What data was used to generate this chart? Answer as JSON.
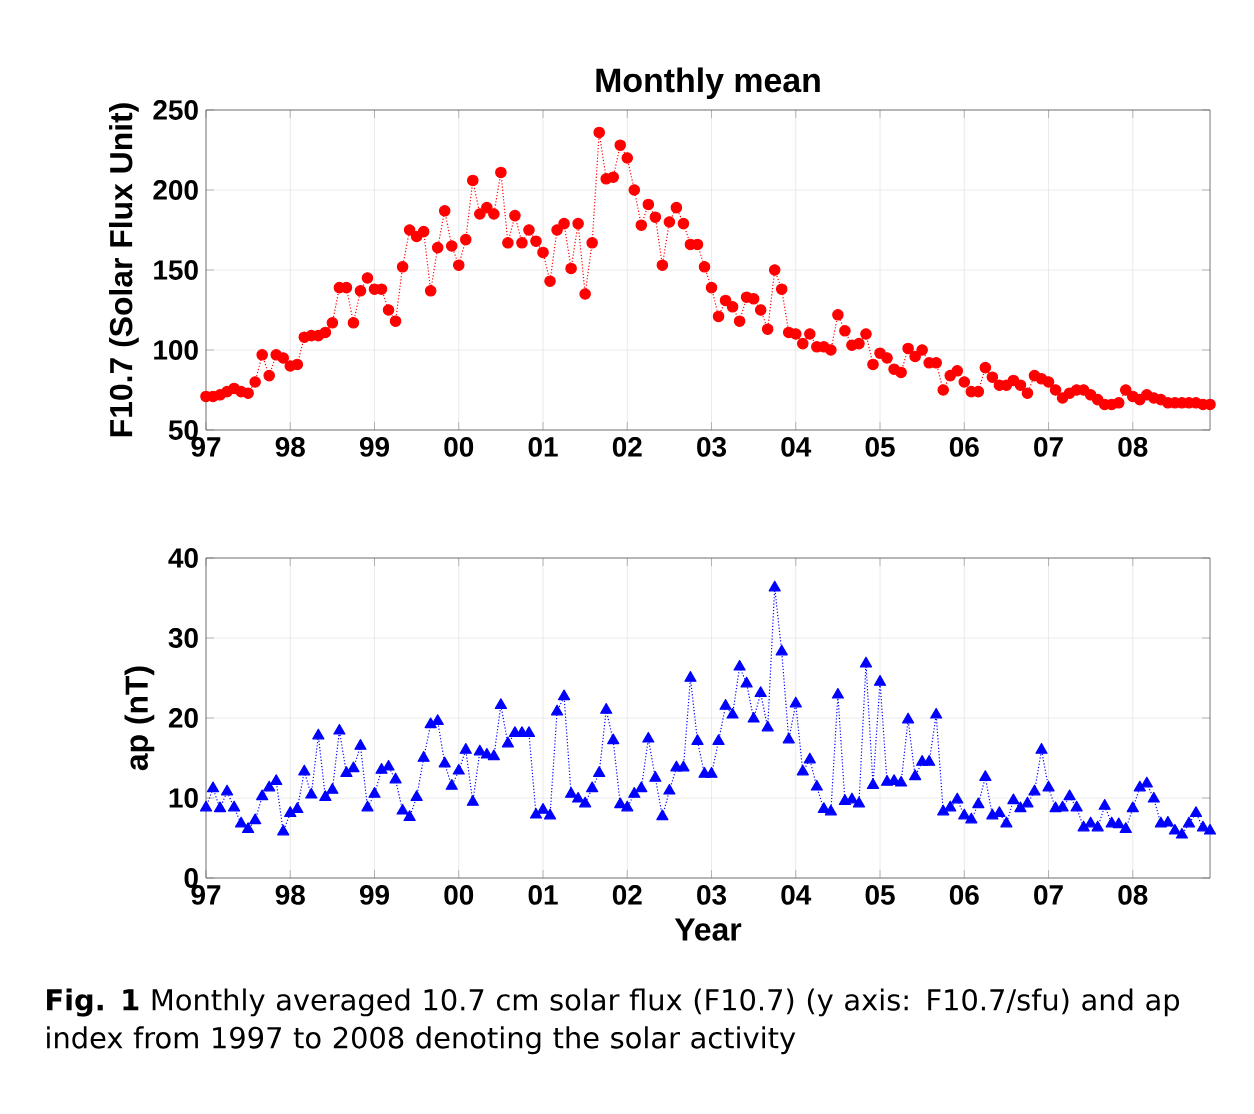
{
  "chart_data": [
    {
      "type": "line",
      "title": "Monthly mean",
      "ylabel": "F10.7 (Solar Flux Unit)",
      "x": [
        "1997-01",
        "1997-02",
        "1997-03",
        "1997-04",
        "1997-05",
        "1997-06",
        "1997-07",
        "1997-08",
        "1997-09",
        "1997-10",
        "1997-11",
        "1997-12",
        "1998-01",
        "1998-02",
        "1998-03",
        "1998-04",
        "1998-05",
        "1998-06",
        "1998-07",
        "1998-08",
        "1998-09",
        "1998-10",
        "1998-11",
        "1998-12",
        "1999-01",
        "1999-02",
        "1999-03",
        "1999-04",
        "1999-05",
        "1999-06",
        "1999-07",
        "1999-08",
        "1999-09",
        "1999-10",
        "1999-11",
        "1999-12",
        "2000-01",
        "2000-02",
        "2000-03",
        "2000-04",
        "2000-05",
        "2000-06",
        "2000-07",
        "2000-08",
        "2000-09",
        "2000-10",
        "2000-11",
        "2000-12",
        "2001-01",
        "2001-02",
        "2001-03",
        "2001-04",
        "2001-05",
        "2001-06",
        "2001-07",
        "2001-08",
        "2001-09",
        "2001-10",
        "2001-11",
        "2001-12",
        "2002-01",
        "2002-02",
        "2002-03",
        "2002-04",
        "2002-05",
        "2002-06",
        "2002-07",
        "2002-08",
        "2002-09",
        "2002-10",
        "2002-11",
        "2002-12",
        "2003-01",
        "2003-02",
        "2003-03",
        "2003-04",
        "2003-05",
        "2003-06",
        "2003-07",
        "2003-08",
        "2003-09",
        "2003-10",
        "2003-11",
        "2003-12",
        "2004-01",
        "2004-02",
        "2004-03",
        "2004-04",
        "2004-05",
        "2004-06",
        "2004-07",
        "2004-08",
        "2004-09",
        "2004-10",
        "2004-11",
        "2004-12",
        "2005-01",
        "2005-02",
        "2005-03",
        "2005-04",
        "2005-05",
        "2005-06",
        "2005-07",
        "2005-08",
        "2005-09",
        "2005-10",
        "2005-11",
        "2005-12",
        "2006-01",
        "2006-02",
        "2006-03",
        "2006-04",
        "2006-05",
        "2006-06",
        "2006-07",
        "2006-08",
        "2006-09",
        "2006-10",
        "2006-11",
        "2006-12",
        "2007-01",
        "2007-02",
        "2007-03",
        "2007-04",
        "2007-05",
        "2007-06",
        "2007-07",
        "2007-08",
        "2007-09",
        "2007-10",
        "2007-11",
        "2007-12",
        "2008-01",
        "2008-02",
        "2008-03",
        "2008-04",
        "2008-05",
        "2008-06",
        "2008-07",
        "2008-08",
        "2008-09",
        "2008-10",
        "2008-11",
        "2008-12"
      ],
      "series": [
        {
          "color": "#ff0000",
          "values": [
            71,
            71,
            72,
            74,
            76,
            74,
            73,
            80,
            97,
            84,
            97,
            95,
            90,
            91,
            108,
            109,
            109,
            111,
            117,
            139,
            139,
            117,
            137,
            145,
            138,
            138,
            125,
            118,
            152,
            175,
            171,
            174,
            137,
            164,
            187,
            165,
            153,
            169,
            206,
            185,
            189,
            185,
            211,
            167,
            184,
            167,
            175,
            168,
            161,
            143,
            175,
            179,
            151,
            179,
            135,
            167,
            236,
            207,
            208,
            228,
            220,
            200,
            178,
            191,
            183,
            153,
            180,
            189,
            179,
            166,
            166,
            152,
            139,
            121,
            131,
            127,
            118,
            133,
            132,
            125,
            113,
            150,
            138,
            111,
            110,
            104,
            110,
            102,
            102,
            100,
            122,
            112,
            103,
            104,
            110,
            91,
            98,
            95,
            88,
            86,
            101,
            96,
            100,
            92,
            92,
            75,
            84,
            87,
            80,
            74,
            74,
            89,
            83,
            78,
            78,
            81,
            78,
            73,
            84,
            82,
            80,
            75,
            70,
            73,
            75,
            75,
            72,
            69,
            66,
            66,
            67,
            75,
            71,
            69,
            72,
            70,
            69,
            67,
            67,
            67,
            67,
            67,
            66,
            66
          ]
        }
      ],
      "marker": "circle",
      "line_style": "dotted",
      "grid": true,
      "xlim": [
        "1997-01",
        "2008-12"
      ],
      "ylim": [
        50,
        250
      ],
      "yticks": [
        50,
        100,
        150,
        200,
        250
      ],
      "xticks": [
        {
          "value": "1997",
          "label": "97"
        },
        {
          "value": "1998",
          "label": "98"
        },
        {
          "value": "1999",
          "label": "99"
        },
        {
          "value": "2000",
          "label": "00"
        },
        {
          "value": "2001",
          "label": "01"
        },
        {
          "value": "2002",
          "label": "02"
        },
        {
          "value": "2003",
          "label": "03"
        },
        {
          "value": "2004",
          "label": "04"
        },
        {
          "value": "2005",
          "label": "05"
        },
        {
          "value": "2006",
          "label": "06"
        },
        {
          "value": "2007",
          "label": "07"
        },
        {
          "value": "2008",
          "label": "08"
        }
      ]
    },
    {
      "type": "line",
      "ylabel": "ap (nT)",
      "xlabel": "Year",
      "x": [
        "1997-01",
        "1997-02",
        "1997-03",
        "1997-04",
        "1997-05",
        "1997-06",
        "1997-07",
        "1997-08",
        "1997-09",
        "1997-10",
        "1997-11",
        "1997-12",
        "1998-01",
        "1998-02",
        "1998-03",
        "1998-04",
        "1998-05",
        "1998-06",
        "1998-07",
        "1998-08",
        "1998-09",
        "1998-10",
        "1998-11",
        "1998-12",
        "1999-01",
        "1999-02",
        "1999-03",
        "1999-04",
        "1999-05",
        "1999-06",
        "1999-07",
        "1999-08",
        "1999-09",
        "1999-10",
        "1999-11",
        "1999-12",
        "2000-01",
        "2000-02",
        "2000-03",
        "2000-04",
        "2000-05",
        "2000-06",
        "2000-07",
        "2000-08",
        "2000-09",
        "2000-10",
        "2000-11",
        "2000-12",
        "2001-01",
        "2001-02",
        "2001-03",
        "2001-04",
        "2001-05",
        "2001-06",
        "2001-07",
        "2001-08",
        "2001-09",
        "2001-10",
        "2001-11",
        "2001-12",
        "2002-01",
        "2002-02",
        "2002-03",
        "2002-04",
        "2002-05",
        "2002-06",
        "2002-07",
        "2002-08",
        "2002-09",
        "2002-10",
        "2002-11",
        "2002-12",
        "2003-01",
        "2003-02",
        "2003-03",
        "2003-04",
        "2003-05",
        "2003-06",
        "2003-07",
        "2003-08",
        "2003-09",
        "2003-10",
        "2003-11",
        "2003-12",
        "2004-01",
        "2004-02",
        "2004-03",
        "2004-04",
        "2004-05",
        "2004-06",
        "2004-07",
        "2004-08",
        "2004-09",
        "2004-10",
        "2004-11",
        "2004-12",
        "2005-01",
        "2005-02",
        "2005-03",
        "2005-04",
        "2005-05",
        "2005-06",
        "2005-07",
        "2005-08",
        "2005-09",
        "2005-10",
        "2005-11",
        "2005-12",
        "2006-01",
        "2006-02",
        "2006-03",
        "2006-04",
        "2006-05",
        "2006-06",
        "2006-07",
        "2006-08",
        "2006-09",
        "2006-10",
        "2006-11",
        "2006-12",
        "2007-01",
        "2007-02",
        "2007-03",
        "2007-04",
        "2007-05",
        "2007-06",
        "2007-07",
        "2007-08",
        "2007-09",
        "2007-10",
        "2007-11",
        "2007-12",
        "2008-01",
        "2008-02",
        "2008-03",
        "2008-04",
        "2008-05",
        "2008-06",
        "2008-07",
        "2008-08",
        "2008-09",
        "2008-10",
        "2008-11",
        "2008-12"
      ],
      "series": [
        {
          "color": "#0000ff",
          "values": [
            8.8,
            11.2,
            8.7,
            10.8,
            8.8,
            6.8,
            6.1,
            7.2,
            10.2,
            11.3,
            12.1,
            5.8,
            8.1,
            8.6,
            13.3,
            10.4,
            17.8,
            10.1,
            11,
            18.4,
            13.1,
            13.7,
            16.5,
            8.8,
            10.5,
            13.5,
            13.9,
            12.3,
            8.4,
            7.6,
            10.1,
            15,
            19.2,
            19.6,
            14.3,
            11.5,
            13.4,
            16,
            9.5,
            15.8,
            15.4,
            15.2,
            21.6,
            16.8,
            18.1,
            18.1,
            18.1,
            7.9,
            8.5,
            7.8,
            20.8,
            22.7,
            10.5,
            9.9,
            9.3,
            11.2,
            13.1,
            21,
            17.2,
            9.2,
            8.8,
            10.5,
            11.2,
            17.4,
            12.5,
            7.7,
            10.9,
            13.8,
            13.8,
            25,
            17.1,
            13,
            13,
            17.1,
            21.5,
            20.4,
            26.4,
            24.3,
            19.9,
            23.1,
            18.8,
            36.3,
            28.3,
            17.3,
            21.8,
            13.3,
            14.8,
            11.4,
            8.6,
            8.3,
            22.9,
            9.6,
            9.8,
            9.3,
            26.8,
            11.6,
            24.5,
            12,
            12.1,
            11.9,
            19.8,
            12.7,
            14.5,
            14.5,
            20.4,
            8.3,
            8.8,
            9.8,
            7.8,
            7.3,
            9.2,
            12.6,
            7.8,
            8.1,
            6.8,
            9.7,
            8.7,
            9.3,
            10.8,
            16,
            11.3,
            8.7,
            8.8,
            10.2,
            8.8,
            6.3,
            6.8,
            6.3,
            9,
            6.8,
            6.7,
            6.1,
            8.7,
            11.3,
            11.8,
            9.9,
            6.8,
            6.9,
            5.9,
            5.4,
            6.8,
            8.1,
            6.3,
            5.9
          ]
        }
      ],
      "marker": "triangle",
      "line_style": "dotted",
      "grid": true,
      "xlim": [
        "1997-01",
        "2008-12"
      ],
      "ylim": [
        0,
        40
      ],
      "yticks": [
        0,
        10,
        20,
        30,
        40
      ],
      "xticks": [
        {
          "value": "1997",
          "label": "97"
        },
        {
          "value": "1998",
          "label": "98"
        },
        {
          "value": "1999",
          "label": "99"
        },
        {
          "value": "2000",
          "label": "00"
        },
        {
          "value": "2001",
          "label": "01"
        },
        {
          "value": "2002",
          "label": "02"
        },
        {
          "value": "2003",
          "label": "03"
        },
        {
          "value": "2004",
          "label": "04"
        },
        {
          "value": "2005",
          "label": "05"
        },
        {
          "value": "2006",
          "label": "06"
        },
        {
          "value": "2007",
          "label": "07"
        },
        {
          "value": "2008",
          "label": "08"
        }
      ],
      "annotations": [
        "**Fig. 1** Monthly averaged 10.7 cm solar flux (F10.7) (y axis: F10.7/sfu) and ap index from 1997 to 2008 denoting the solar activity"
      ]
    }
  ]
}
